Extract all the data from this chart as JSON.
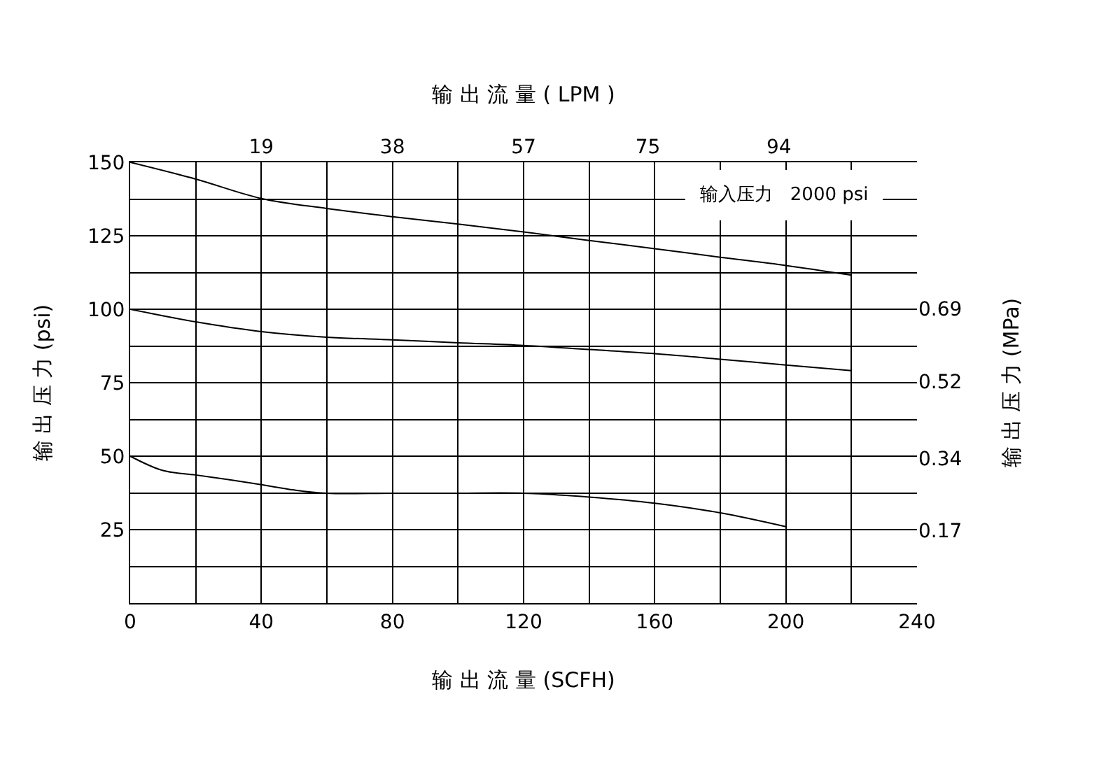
{
  "chart_data": {
    "type": "line",
    "xlabel": "输 出 流 量 (SCFH)",
    "ylabel": "输 出 压 力 (psi)",
    "y2label": "输 出 压 力 (MPa)",
    "x2label": "输 出 流 量 ( LPM )",
    "annotations": [
      "输入压力   2000 psi"
    ],
    "series": [
      {
        "color": "#000000",
        "x": [
          0,
          20,
          40,
          60,
          80,
          100,
          120,
          140,
          160,
          180,
          200,
          220
        ],
        "values": [
          150,
          144.3,
          137.7,
          134.3,
          131.5,
          129,
          126.3,
          123.4,
          120.6,
          117.7,
          114.9,
          111.6
        ]
      },
      {
        "color": "#000000",
        "x": [
          0,
          20,
          40,
          60,
          80,
          100,
          120,
          140,
          160,
          180,
          200,
          220
        ],
        "values": [
          100,
          95.7,
          92.4,
          90.5,
          89.6,
          88.6,
          87.7,
          86.3,
          84.9,
          83,
          81,
          79.1
        ]
      },
      {
        "color": "#000000",
        "x": [
          0,
          10,
          20,
          30,
          40,
          50,
          60,
          80,
          100,
          120,
          140,
          160,
          180,
          200
        ],
        "values": [
          50,
          45.1,
          43.6,
          42,
          40.3,
          38.5,
          37.4,
          37.4,
          37.4,
          37.4,
          36.1,
          34,
          30.7,
          26
        ]
      }
    ],
    "xlim": [
      0,
      240
    ],
    "xticks": [
      0,
      {
        "value": 20,
        "label": null
      },
      40,
      {
        "value": 60,
        "label": null
      },
      80,
      {
        "value": 100,
        "label": null
      },
      120,
      {
        "value": 140,
        "label": null
      },
      160,
      {
        "value": 180,
        "label": null
      },
      200,
      {
        "value": 220,
        "label": null
      },
      240
    ],
    "ylim": [
      0,
      150
    ],
    "yticks": [
      {
        "value": 0,
        "label": null
      },
      {
        "value": 12.5,
        "label": null
      },
      25,
      {
        "value": 37.5,
        "label": null
      },
      50,
      {
        "value": 62.5,
        "label": null
      },
      75,
      {
        "value": 87.5,
        "label": null
      },
      100,
      {
        "value": 112.5,
        "label": null
      },
      125,
      {
        "value": 137.5,
        "label": null
      },
      150
    ],
    "x2lim": [
      0,
      114
    ],
    "x2ticks": [
      19,
      38,
      57,
      75,
      94
    ],
    "y2lim": [
      0,
      1.034
    ],
    "y2ticks": [
      0.17,
      0.34,
      0.52,
      0.69
    ],
    "grid": true,
    "marker": "none",
    "line_style": "solid"
  }
}
